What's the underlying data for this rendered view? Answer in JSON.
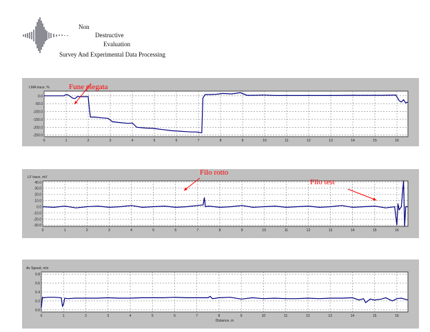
{
  "header": {
    "line1": "Non",
    "line2": "Destructive",
    "line3": "Evaluation",
    "line4": "Survey And Experimental Data Processing"
  },
  "colors": {
    "panel_bg": "#c0c0c0",
    "plot_bg": "#ffffff",
    "trace": "#000080",
    "grid": "#808080",
    "annotation": "#ff0000"
  },
  "chart_data": [
    {
      "type": "line",
      "ylabel": "LMA trace, %",
      "xlabel": "",
      "xlim": [
        0,
        16.5
      ],
      "ylim": [
        -260,
        30
      ],
      "grid": true,
      "xticks": [
        0,
        1,
        2,
        3,
        4,
        5,
        6,
        7,
        8,
        9,
        10,
        11,
        12,
        13,
        14,
        15,
        16
      ],
      "ytick_values": [
        0,
        -50,
        -100,
        -150,
        -200,
        -250
      ],
      "ytick_labels": [
        "0.0",
        "-50.0",
        "-100.0",
        "-150.0",
        "-200.0",
        "-250.0"
      ],
      "series": [
        {
          "x": [
            0,
            0.5,
            0.9,
            1.0,
            1.1,
            1.2,
            1.3,
            1.4,
            1.5,
            1.7,
            1.9,
            2.0,
            2.05,
            2.1,
            2.3,
            2.6,
            2.9,
            3.1,
            3.4,
            3.8,
            4.0,
            4.2,
            4.6,
            4.9,
            5.1,
            5.4,
            5.8,
            6.1,
            6.4,
            6.7,
            6.9,
            7.0,
            7.1,
            7.15,
            7.2,
            7.3,
            7.5,
            7.8,
            8.1,
            8.5,
            8.9,
            9.2,
            9.5,
            9.9,
            10.5,
            11,
            12,
            13,
            14,
            14.8,
            15.3,
            15.7,
            15.95,
            16.1,
            16.2,
            16.3,
            16.4,
            16.5
          ],
          "y": [
            0,
            0,
            0,
            8,
            5,
            -5,
            -15,
            -18,
            -5,
            -5,
            -5,
            -5,
            -80,
            -135,
            -135,
            -140,
            -143,
            -165,
            -170,
            -175,
            -173,
            -200,
            -205,
            -207,
            -210,
            -215,
            -222,
            -225,
            -228,
            -230,
            -230,
            -232,
            -235,
            -235,
            -15,
            8,
            8,
            10,
            15,
            12,
            20,
            3,
            3,
            5,
            2,
            2,
            2,
            2,
            3,
            3,
            3,
            4,
            5,
            -30,
            -40,
            -25,
            -45,
            -40
          ]
        }
      ],
      "annotations": [
        {
          "text": "Fune piegata",
          "x": 1.35,
          "y": -25
        }
      ]
    },
    {
      "type": "line",
      "ylabel": "LF trace, mV",
      "xlabel": "",
      "xlim": [
        0,
        16.5
      ],
      "ylim": [
        -32,
        42
      ],
      "grid": true,
      "xticks": [
        0,
        1,
        2,
        3,
        4,
        5,
        6,
        7,
        8,
        9,
        10,
        11,
        12,
        13,
        14,
        15,
        16
      ],
      "ytick_values": [
        40,
        30,
        20,
        10,
        0,
        -10,
        -20,
        -30
      ],
      "ytick_labels": [
        "40.0",
        "30.0",
        "20.0",
        "10.0",
        "0.0",
        "-10.0",
        "-20.0",
        "-30.0"
      ],
      "series": [
        {
          "x": [
            0,
            0.5,
            1.0,
            1.5,
            2.0,
            2.5,
            3.0,
            3.5,
            4.0,
            4.5,
            5.0,
            5.5,
            6.0,
            6.5,
            7.0,
            7.25,
            7.3,
            7.35,
            7.5,
            8.0,
            8.5,
            9.0,
            9.5,
            10.0,
            10.5,
            11.0,
            11.5,
            12.0,
            12.5,
            13.0,
            13.5,
            14.0,
            14.5,
            15.0,
            15.5,
            15.9,
            16.0,
            16.05,
            16.1,
            16.2,
            16.3,
            16.35,
            16.4,
            16.5
          ],
          "y": [
            0,
            -1,
            1,
            -2,
            0,
            1,
            -1,
            0,
            2,
            -1,
            0,
            1,
            -1,
            0,
            2,
            3,
            15,
            0,
            1,
            -1,
            0,
            2,
            -1,
            0,
            1,
            -1,
            0,
            1,
            -1,
            0,
            2,
            -1,
            0,
            1,
            -2,
            0,
            -30,
            5,
            -5,
            0,
            42,
            -32,
            0,
            0
          ]
        }
      ],
      "annotations": [
        {
          "text": "Filo rotto",
          "x": 6.5,
          "y": 30
        },
        {
          "text": "Filo test",
          "x": 15.5,
          "y": 12
        }
      ]
    },
    {
      "type": "line",
      "ylabel": "Av Speed, m/s",
      "xlabel": "Distance, m",
      "xlim": [
        0,
        16.5
      ],
      "ylim": [
        -0.05,
        0.85
      ],
      "grid": true,
      "xticks": [
        0,
        1,
        2,
        3,
        4,
        5,
        6,
        7,
        8,
        9,
        10,
        11,
        12,
        13,
        14,
        15,
        16
      ],
      "ytick_values": [
        0.8,
        0.6,
        0.4,
        0.2,
        0.0
      ],
      "ytick_labels": [
        "0.8",
        "0.6",
        "0.4",
        "0.2",
        "0.0"
      ],
      "series": [
        {
          "x": [
            0,
            0.05,
            0.1,
            0.3,
            0.6,
            0.9,
            0.95,
            1.0,
            1.05,
            1.2,
            1.5,
            2.0,
            2.5,
            3.0,
            3.5,
            4.0,
            4.5,
            5.0,
            5.5,
            6.0,
            6.5,
            7.0,
            7.5,
            7.6,
            7.7,
            8.0,
            8.5,
            9.0,
            9.5,
            10.0,
            10.5,
            11.0,
            11.5,
            12.0,
            12.5,
            13.0,
            13.5,
            14.0,
            14.3,
            14.5,
            14.6,
            14.8,
            15.0,
            15.3,
            15.5,
            15.8,
            16.0,
            16.2,
            16.5
          ],
          "y": [
            0.05,
            0.28,
            0.27,
            0.28,
            0.28,
            0.27,
            0.08,
            0.12,
            0.26,
            0.25,
            0.26,
            0.26,
            0.26,
            0.27,
            0.26,
            0.26,
            0.27,
            0.27,
            0.27,
            0.28,
            0.27,
            0.27,
            0.27,
            0.3,
            0.25,
            0.27,
            0.28,
            0.24,
            0.27,
            0.25,
            0.26,
            0.25,
            0.25,
            0.26,
            0.25,
            0.26,
            0.26,
            0.27,
            0.22,
            0.25,
            0.16,
            0.24,
            0.22,
            0.24,
            0.27,
            0.2,
            0.25,
            0.26,
            0.22
          ]
        }
      ],
      "annotations": []
    }
  ]
}
